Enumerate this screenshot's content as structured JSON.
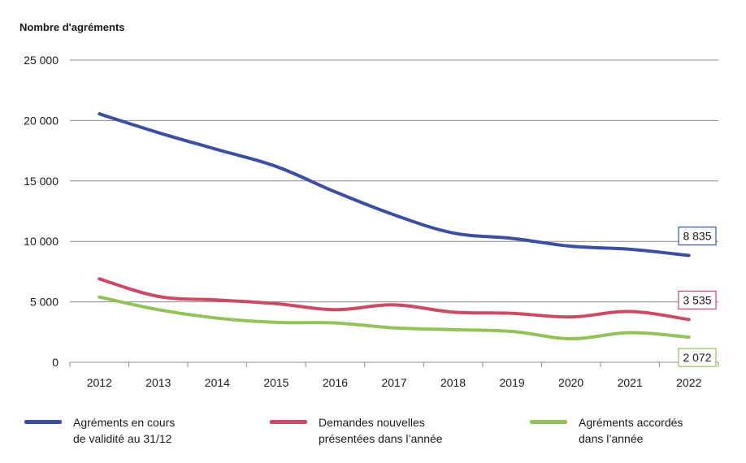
{
  "chart_data": {
    "type": "line",
    "ylabel": "Nombre d'agréments",
    "xlabel": "",
    "categories": [
      "2012",
      "2013",
      "2014",
      "2015",
      "2016",
      "2017",
      "2018",
      "2019",
      "2020",
      "2021",
      "2022"
    ],
    "ylim": [
      0,
      25000
    ],
    "yticks": [
      0,
      5000,
      10000,
      15000,
      20000,
      25000
    ],
    "ytick_labels": [
      "0",
      "5 000",
      "10 000",
      "15 000",
      "20 000",
      "25 000"
    ],
    "grid": true,
    "legend_position": "bottom",
    "series": [
      {
        "name": "Agréments en cours\nde validité au 31/12",
        "color": "#3a4fa3",
        "values": [
          20550,
          19000,
          17600,
          16200,
          14100,
          12200,
          10700,
          10250,
          9600,
          9350,
          8835
        ],
        "end_label": "8 835"
      },
      {
        "name": "Demandes nouvelles\nprésentées dans l’année",
        "color": "#cc4a66",
        "values": [
          6900,
          5450,
          5150,
          4850,
          4350,
          4750,
          4150,
          4050,
          3750,
          4200,
          3535
        ],
        "end_label": "3 535"
      },
      {
        "name": "Agréments accordés\ndans l’année",
        "color": "#93c259",
        "values": [
          5400,
          4350,
          3650,
          3300,
          3250,
          2850,
          2700,
          2550,
          1950,
          2450,
          2072
        ],
        "end_label": "2 072"
      }
    ]
  }
}
